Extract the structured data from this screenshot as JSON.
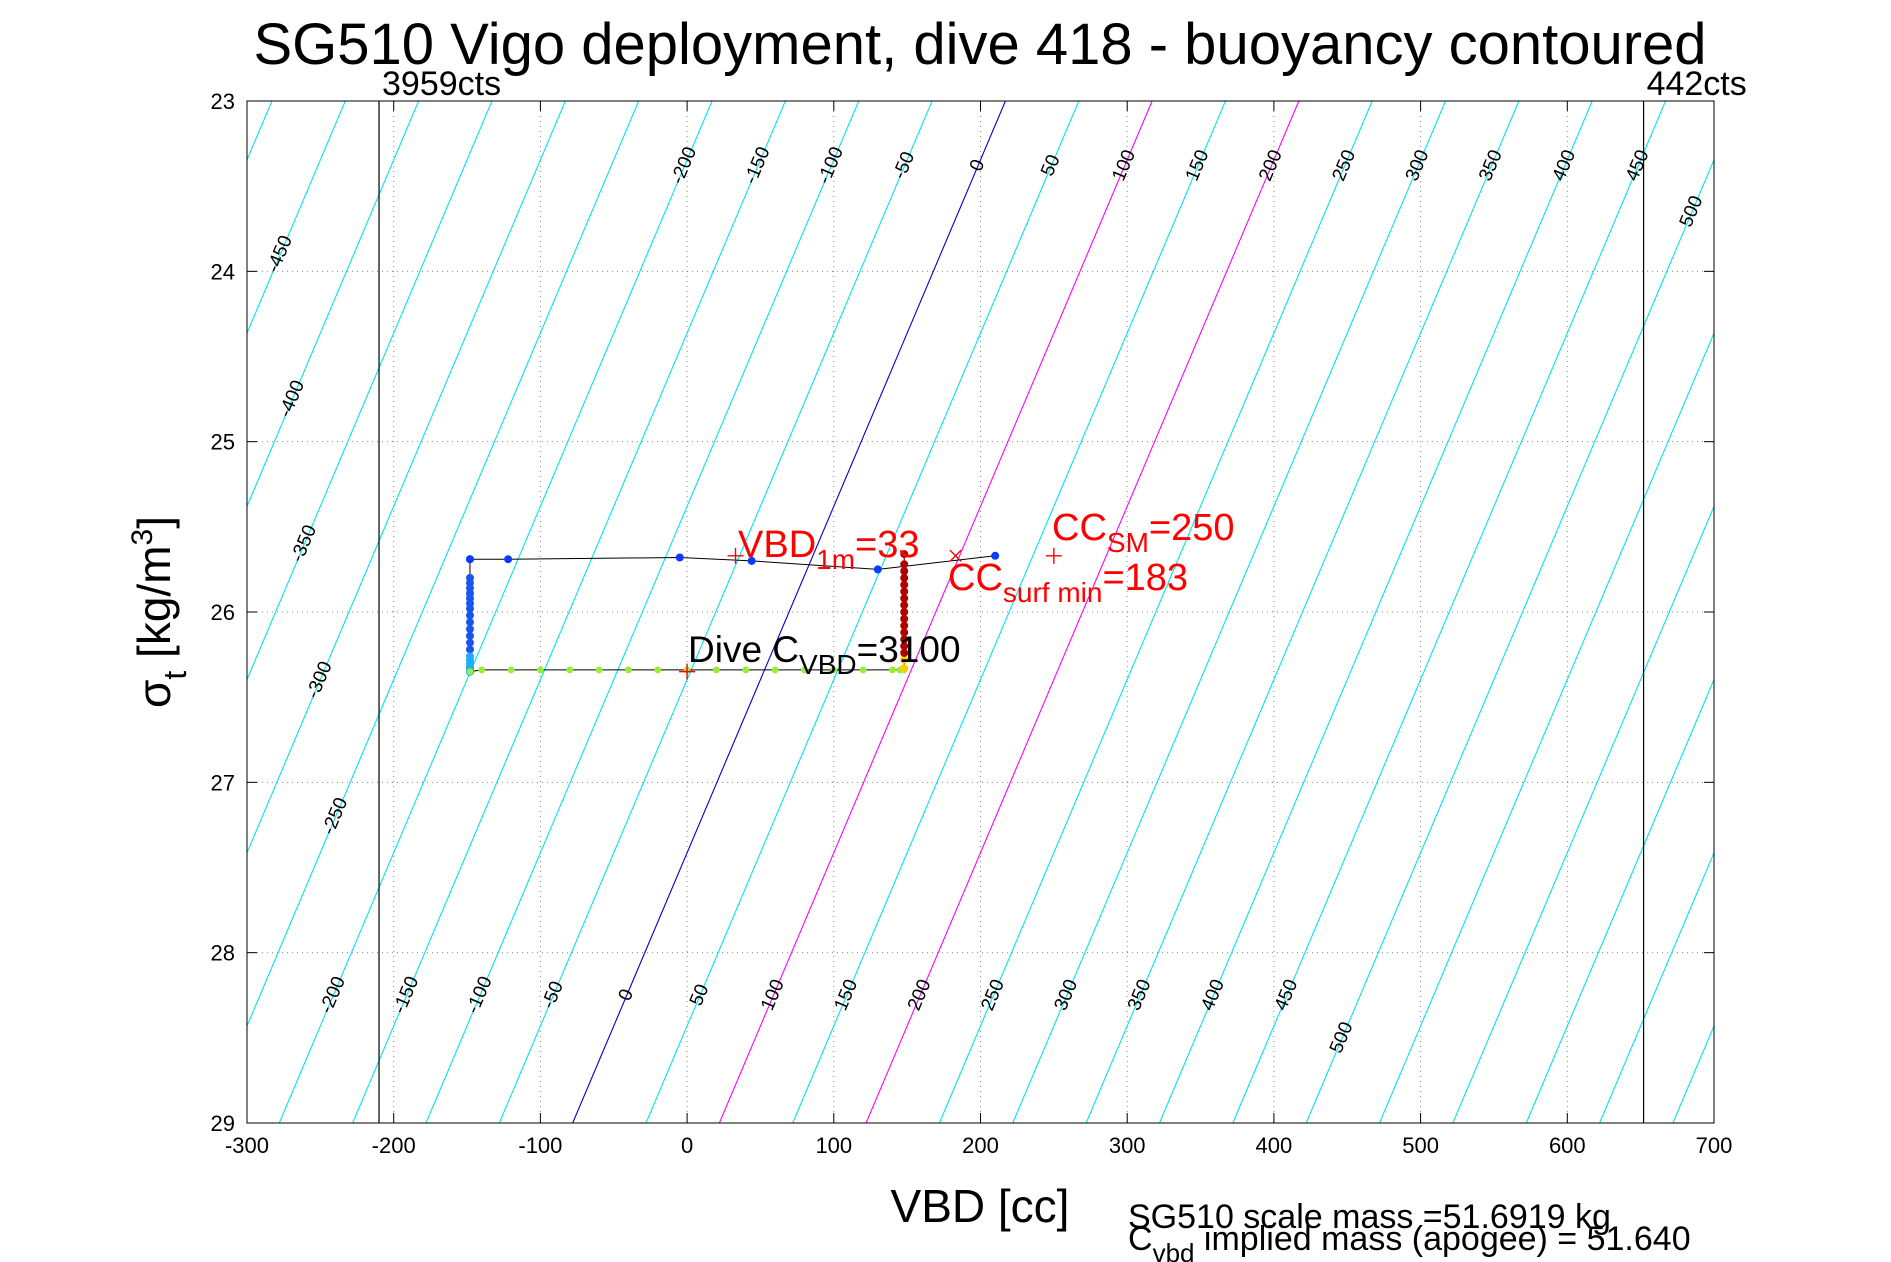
{
  "chart_data": {
    "type": "scatter",
    "title": "SG510 Vigo deployment, dive 418 - buoyancy contoured",
    "xlabel": "VBD [cc]",
    "ylabel_sym": "σ",
    "ylabel_sub": "t",
    "ylabel_unit_a": " [kg/m",
    "ylabel_sup": "3",
    "ylabel_unit_b": "]",
    "xlim": [
      -300,
      700
    ],
    "ylim": [
      23,
      29
    ],
    "y_reversed": true,
    "grid": true,
    "x_ticks": [
      -300,
      -200,
      -100,
      0,
      100,
      200,
      300,
      400,
      500,
      600,
      700
    ],
    "x_tick_labels": [
      "-300",
      "-200",
      "-100",
      "0",
      "100",
      "200",
      "300",
      "400",
      "500",
      "600",
      "700"
    ],
    "y_ticks": [
      23,
      24,
      25,
      26,
      27,
      28,
      29
    ],
    "y_tick_labels": [
      "23",
      "24",
      "25",
      "26",
      "27",
      "28",
      "29"
    ],
    "vbd_limits": [
      {
        "x": -210,
        "label": "3959cts"
      },
      {
        "x": 652,
        "label": "442cts"
      }
    ],
    "contours": {
      "buoyancy_levels": [
        -500,
        -450,
        -400,
        -350,
        -300,
        -250,
        -200,
        -150,
        -100,
        -50,
        0,
        50,
        100,
        150,
        200,
        250,
        300,
        350,
        400,
        450,
        500,
        550,
        600,
        650,
        700,
        750,
        800,
        850
      ],
      "vbd_at_sigma_23_for_zero": 217,
      "vbd_at_sigma_29_for_zero": -78,
      "highlight": [
        {
          "level": 0,
          "color": "#0000cc"
        },
        {
          "level": 100,
          "color": "#ff00ff"
        },
        {
          "level": 200,
          "color": "#ff00ff"
        }
      ],
      "base_color": "#00e5ee"
    },
    "contour_labels_top": [
      "-450",
      "-400",
      "-350",
      "-300",
      "-250",
      "-200",
      "-150",
      "-100",
      "-50",
      "0",
      "50",
      "100",
      "150",
      "200",
      "250",
      "300",
      "350",
      "400",
      "450",
      "500"
    ],
    "contour_labels_bottom": [
      "-200",
      "-150",
      "-100",
      "-50",
      "0",
      "50",
      "100",
      "150",
      "200",
      "250",
      "300",
      "350",
      "400",
      "450",
      "500"
    ],
    "series": [
      {
        "name": "dive profile (colored by depth)",
        "line_color": "#000000",
        "x": [
          -148,
          -148,
          -148,
          -148,
          -148,
          -148,
          -148,
          -148,
          -148,
          -148,
          -148,
          -148,
          -148,
          -148,
          -148,
          -148,
          -148,
          -148,
          -148,
          -148,
          -148,
          -148,
          -148,
          -148,
          -148,
          -148,
          -148,
          -148
        ],
        "y": [
          25.69,
          25.8,
          25.83,
          25.86,
          25.89,
          25.92,
          25.95,
          25.98,
          26.02,
          26.06,
          26.1,
          26.14,
          26.18,
          26.22,
          26.26,
          26.28,
          26.3,
          26.32,
          26.33,
          26.34,
          26.34,
          26.34,
          26.35,
          26.35,
          26.35,
          26.35,
          26.35,
          26.35
        ]
      },
      {
        "name": "climb at max depth",
        "x": [
          -148,
          -140,
          -120,
          -100,
          -80,
          -60,
          -40,
          -20,
          0,
          20,
          40,
          60,
          80,
          100,
          120,
          140,
          145,
          148
        ],
        "y": [
          26.35,
          26.34,
          26.34,
          26.34,
          26.34,
          26.34,
          26.34,
          26.34,
          26.34,
          26.34,
          26.34,
          26.34,
          26.34,
          26.34,
          26.34,
          26.34,
          26.34,
          26.34
        ]
      },
      {
        "name": "ascent",
        "x": [
          148,
          148,
          148,
          148,
          148,
          148,
          148,
          148,
          148,
          148,
          148,
          148,
          148,
          148,
          148,
          148,
          148
        ],
        "y": [
          26.33,
          26.28,
          26.24,
          26.2,
          26.16,
          26.12,
          26.08,
          26.04,
          26.0,
          25.96,
          25.92,
          25.88,
          25.84,
          25.8,
          25.76,
          25.72,
          25.66
        ]
      },
      {
        "name": "surface segment",
        "x": [
          -148,
          -122,
          -5,
          44,
          130,
          210
        ],
        "y": [
          25.69,
          25.69,
          25.68,
          25.7,
          25.75,
          25.67
        ]
      }
    ],
    "markers": {
      "vbd_1m": {
        "x": 33,
        "y": 25.67,
        "symbol": "+",
        "color": "#ff0000"
      },
      "cc_surf_min": {
        "x": 183,
        "y": 25.67,
        "symbol": "x",
        "color": "#ff0000"
      },
      "cc_sm": {
        "x": 250,
        "y": 25.67,
        "symbol": "+",
        "color": "#ff0000"
      },
      "dive_cvbd": {
        "x": 0,
        "y": 26.35,
        "symbol": "+",
        "color": "#ff0000"
      }
    },
    "annotations": {
      "vbd_1m": {
        "base": "VBD",
        "sub": "1m",
        "rest": "=33"
      },
      "cc_sm": {
        "base": "CC",
        "sub": "SM",
        "rest": "=250"
      },
      "cc_surf_min": {
        "base": "CC",
        "sub": "surf min",
        "rest": "=183"
      },
      "dive_cvbd": {
        "base": "Dive C",
        "sub": "VBD",
        "rest": "=3100"
      }
    },
    "footer": {
      "line1": "SG510 scale mass =51.6919 kg",
      "line2_base": "C",
      "line2_sub": "vbd",
      "line2_rest": " implied mass (apogee) = 51.640"
    }
  }
}
